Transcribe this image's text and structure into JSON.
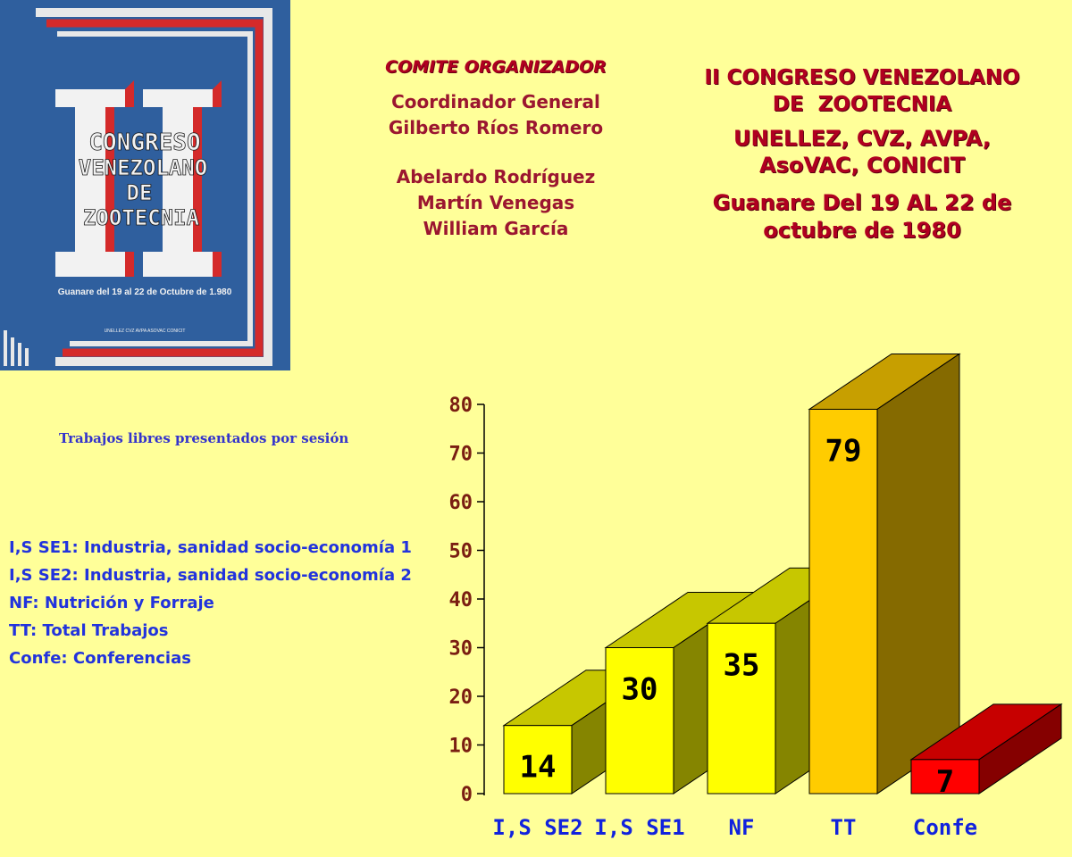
{
  "committee": {
    "heading": "COMITE ORGANIZADOR",
    "lines_a": [
      "Coordinador General",
      "Gilberto Ríos Romero"
    ],
    "lines_b": [
      "Abelardo Rodríguez",
      "Martín Venegas",
      "William García"
    ]
  },
  "congress": {
    "title_lines": [
      "II CONGRESO VENEZOLANO",
      "DE  ZOOTECNIA"
    ],
    "sponsor_lines": [
      "UNELLEZ, CVZ, AVPA,",
      "AsoVAC, CONICIT"
    ],
    "date_lines": [
      "Guanare Del 19 AL 22 de",
      "octubre de 1980"
    ]
  },
  "poster": {
    "numeral": "II",
    "title_lines": [
      "CONGRESO",
      "VENEZOLANO",
      "DE",
      "ZOOTECNIA"
    ],
    "date": "Guanare del 19 al 22 de Octubre de 1.980",
    "footer": "UNELLEZ  CVZ  AVPA  ASOVAC  CONICIT"
  },
  "chart_caption": "Trabajos libres presentados por sesión",
  "legend": [
    "I,S SE1: Industria, sanidad socio-economía 1",
    "I,S SE2: Industria, sanidad socio-economía 2",
    "NF: Nutrición y Forraje",
    "TT: Total Trabajos",
    "Confe: Conferencias"
  ],
  "colors": {
    "background": "#FFFF99",
    "bar_yellow": "#FFFF00",
    "bar_orange": "#FFCC00",
    "bar_red": "#FF0000",
    "category_label": "#1122DD"
  },
  "chart_data": {
    "type": "bar",
    "style": "3d",
    "categories": [
      "I,S SE2",
      "I,S SE1",
      "NF",
      "TT",
      "Confe"
    ],
    "values": [
      14,
      30,
      35,
      79,
      7
    ],
    "data_labels": [
      "14",
      "30",
      "35",
      "79",
      "7"
    ],
    "bar_colors": [
      "#FFFF00",
      "#FFFF00",
      "#FFFF00",
      "#FFCC00",
      "#FF0000"
    ],
    "ylim": [
      0,
      80
    ],
    "yticks": [
      "0",
      "10",
      "20",
      "30",
      "40",
      "50",
      "60",
      "70",
      "80"
    ],
    "grid": false,
    "legend_placement": "left"
  }
}
